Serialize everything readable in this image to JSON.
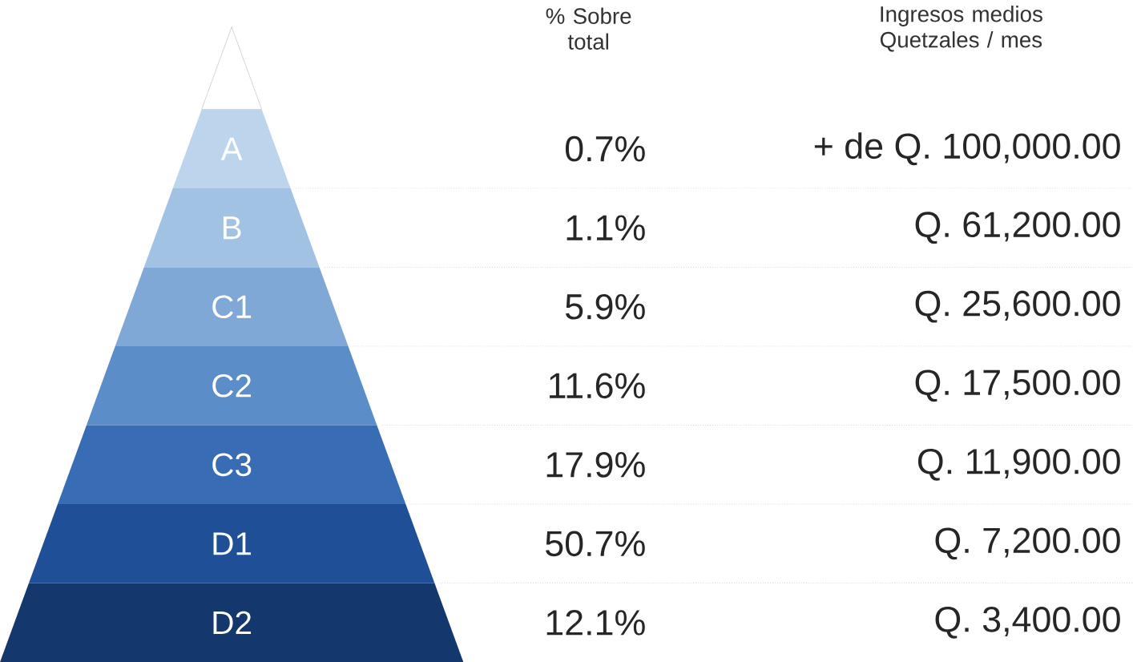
{
  "chart_data": {
    "type": "other",
    "categories": [
      "A",
      "B",
      "C1",
      "C2",
      "C3",
      "D1",
      "D2"
    ],
    "colors": [
      "#bcd4ec",
      "#a2c2e4",
      "#7fa8d6",
      "#5b8dc9",
      "#386db5",
      "#1f4f96",
      "#14386e"
    ],
    "series": [
      {
        "name": "% Sobre total",
        "values": [
          0.7,
          1.1,
          5.9,
          11.6,
          17.9,
          50.7,
          12.1
        ],
        "value_labels": [
          "0.7%",
          "1.1%",
          "5.9%",
          "11.6%",
          "17.9%",
          "50.7%",
          "12.1%"
        ]
      },
      {
        "name": "Ingresos medios Quetzales / mes",
        "values": [
          100000,
          61200,
          25600,
          17500,
          11900,
          7200,
          3400
        ],
        "value_labels": [
          "+ de Q. 100,000.00",
          "Q. 61,200.00",
          "Q. 25,600.00",
          "Q. 17,500.00",
          "Q. 11,900.00",
          "Q. 7,200.00",
          "Q. 3,400.00"
        ]
      }
    ]
  }
}
